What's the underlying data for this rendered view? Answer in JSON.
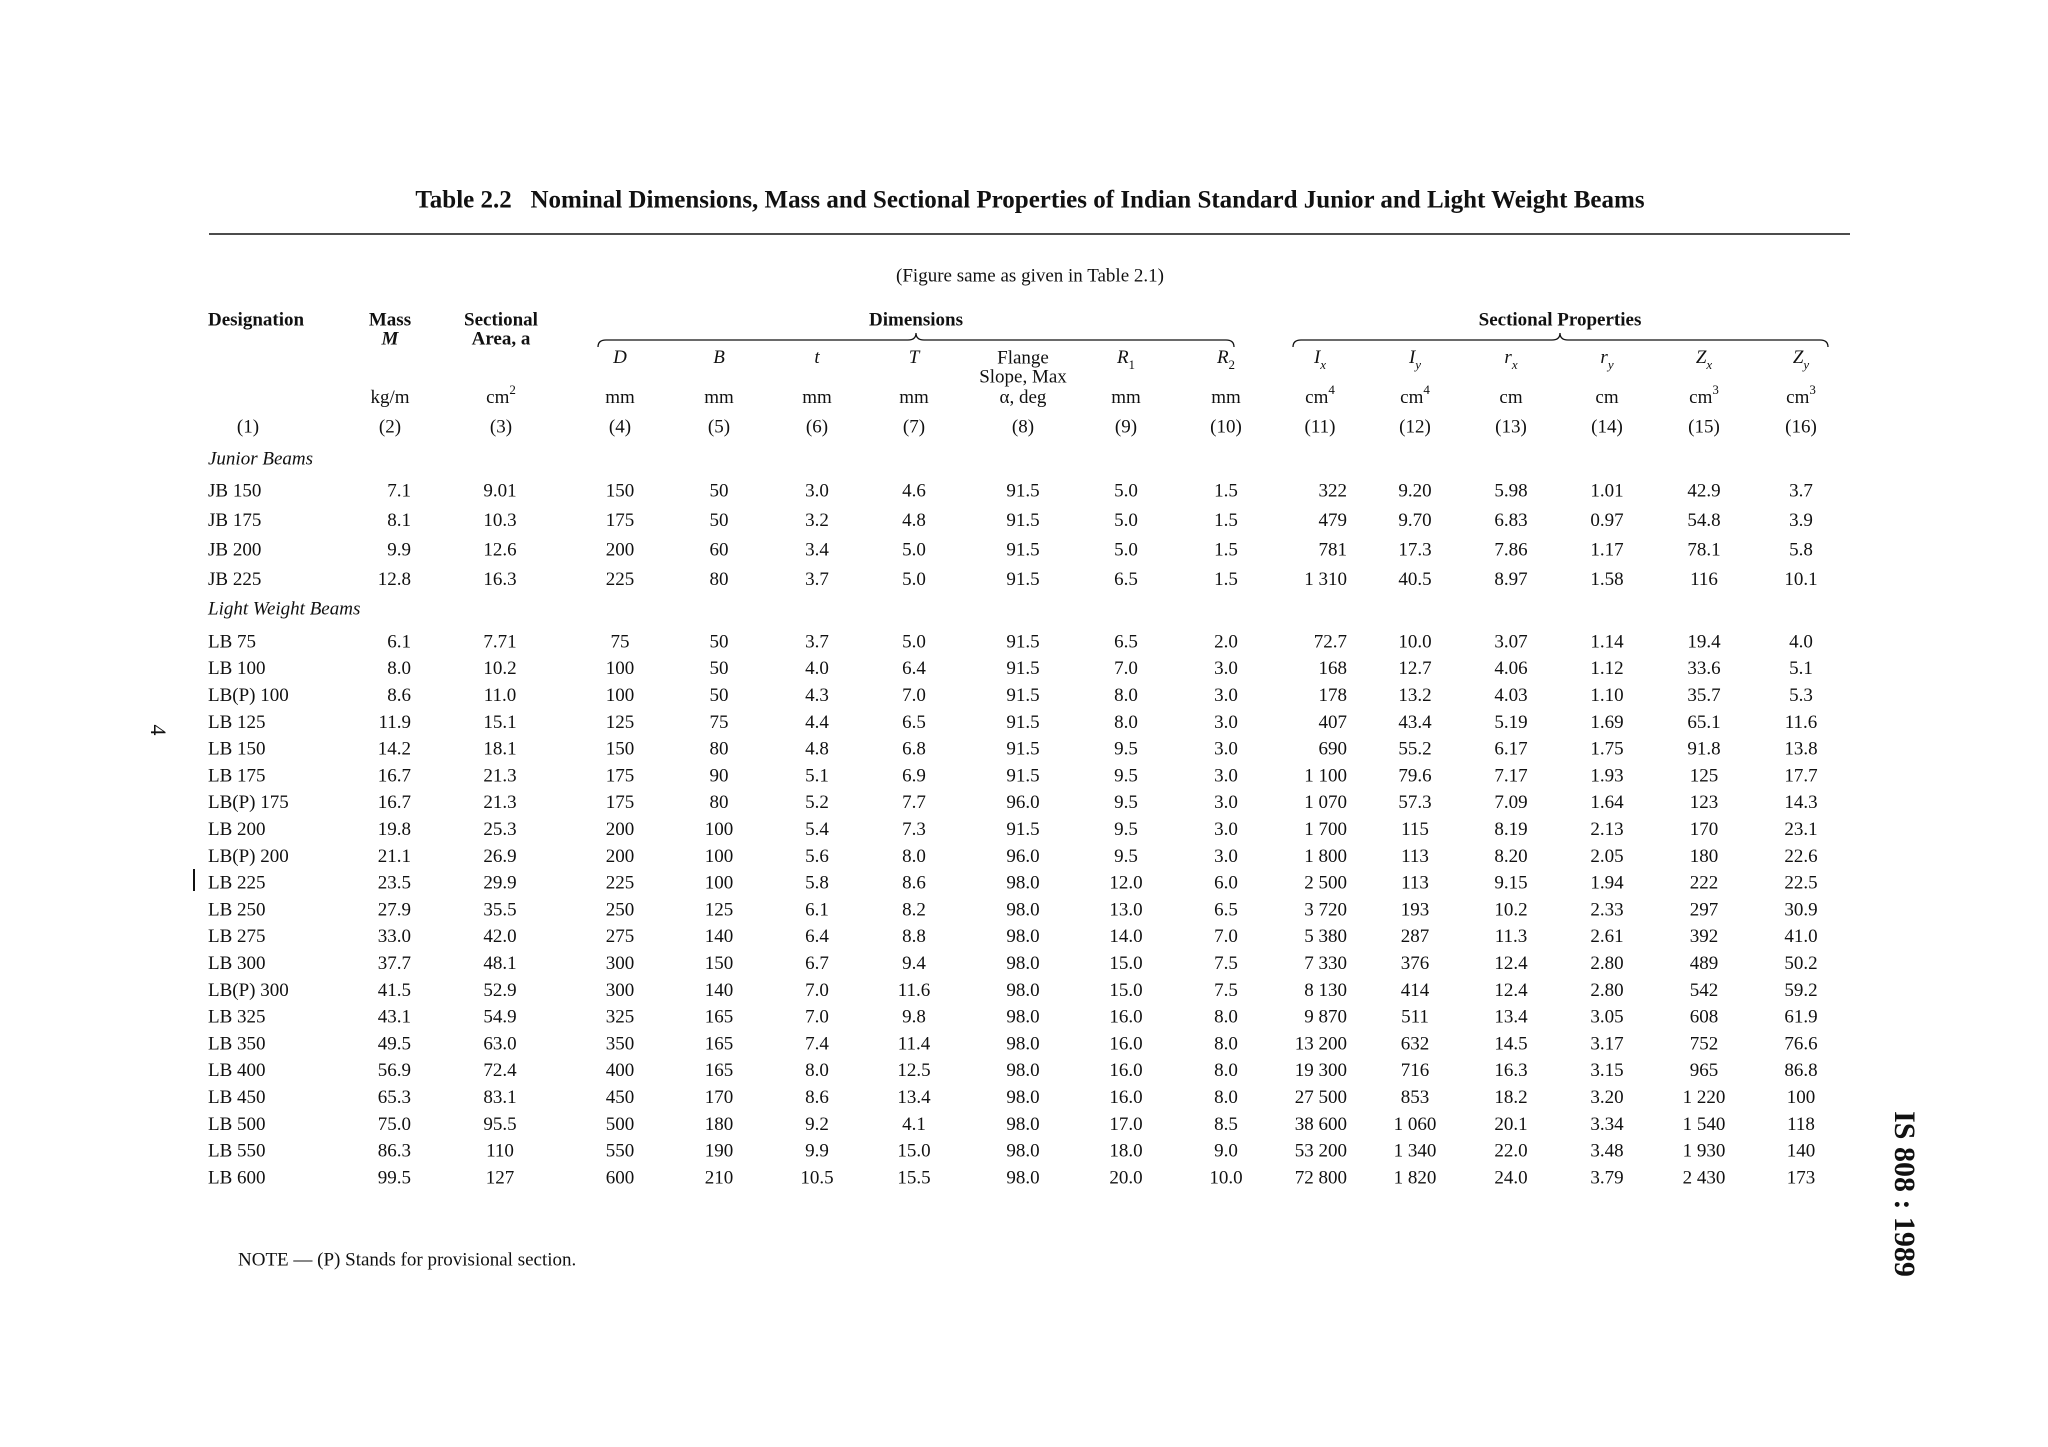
{
  "title": "Table 2.2   Nominal Dimensions, Mass and Sectional Properties of Indian Standard Junior and Light Weight Beams",
  "subtitle": "(Figure same as given in Table 2.1)",
  "header": {
    "top": [
      {
        "lines": [
          "Designation"
        ]
      },
      {
        "lines": [
          "Mass",
          "M"
        ]
      },
      {
        "lines": [
          "Sectional",
          "Area, a"
        ]
      }
    ],
    "groups": [
      "Dimensions",
      "Sectional Properties"
    ],
    "symbols": [
      {
        "s": "D"
      },
      {
        "s": "B"
      },
      {
        "s": "t"
      },
      {
        "s": "T"
      },
      {
        "lines": [
          "Flange",
          "Slope, Max"
        ]
      },
      {
        "s": "R",
        "sub": "1"
      },
      {
        "s": "R",
        "sub": "2"
      },
      {
        "s": "I",
        "sub": "x"
      },
      {
        "s": "I",
        "sub": "y"
      },
      {
        "s": "r",
        "sub": "x"
      },
      {
        "s": "r",
        "sub": "y"
      },
      {
        "s": "Z",
        "sub": "x"
      },
      {
        "s": "Z",
        "sub": "y"
      }
    ],
    "units": [
      {
        "t": "kg/m"
      },
      {
        "t": "cm",
        "sup": "2"
      },
      {
        "t": "mm"
      },
      {
        "t": "mm"
      },
      {
        "t": "mm"
      },
      {
        "t": "mm"
      },
      {
        "t": "α, deg"
      },
      {
        "t": "mm"
      },
      {
        "t": "mm"
      },
      {
        "t": "cm",
        "sup": "4"
      },
      {
        "t": "cm",
        "sup": "4"
      },
      {
        "t": "cm"
      },
      {
        "t": "cm"
      },
      {
        "t": "cm",
        "sup": "3"
      },
      {
        "t": "cm",
        "sup": "3"
      }
    ],
    "numbers": [
      "(1)",
      "(2)",
      "(3)",
      "(4)",
      "(5)",
      "(6)",
      "(7)",
      "(8)",
      "(9)",
      "(10)",
      "(11)",
      "(12)",
      "(13)",
      "(14)",
      "(15)",
      "(16)"
    ]
  },
  "sections": [
    {
      "label": "Junior Beams",
      "rows": [
        [
          "JB 150",
          "7.1",
          "9.01",
          "150",
          "50",
          "3.0",
          "4.6",
          "91.5",
          "5.0",
          "1.5",
          "322",
          "9.20",
          "5.98",
          "1.01",
          "42.9",
          "3.7"
        ],
        [
          "JB 175",
          "8.1",
          "10.3",
          "175",
          "50",
          "3.2",
          "4.8",
          "91.5",
          "5.0",
          "1.5",
          "479",
          "9.70",
          "6.83",
          "0.97",
          "54.8",
          "3.9"
        ],
        [
          "JB 200",
          "9.9",
          "12.6",
          "200",
          "60",
          "3.4",
          "5.0",
          "91.5",
          "5.0",
          "1.5",
          "781",
          "17.3",
          "7.86",
          "1.17",
          "78.1",
          "5.8"
        ],
        [
          "JB 225",
          "12.8",
          "16.3",
          "225",
          "80",
          "3.7",
          "5.0",
          "91.5",
          "6.5",
          "1.5",
          "1 310",
          "40.5",
          "8.97",
          "1.58",
          "116",
          "10.1"
        ]
      ]
    },
    {
      "label": "Light Weight Beams",
      "rows": [
        [
          "LB 75",
          "6.1",
          "7.71",
          "75",
          "50",
          "3.7",
          "5.0",
          "91.5",
          "6.5",
          "2.0",
          "72.7",
          "10.0",
          "3.07",
          "1.14",
          "19.4",
          "4.0"
        ],
        [
          "LB 100",
          "8.0",
          "10.2",
          "100",
          "50",
          "4.0",
          "6.4",
          "91.5",
          "7.0",
          "3.0",
          "168",
          "12.7",
          "4.06",
          "1.12",
          "33.6",
          "5.1"
        ],
        [
          "LB(P) 100",
          "8.6",
          "11.0",
          "100",
          "50",
          "4.3",
          "7.0",
          "91.5",
          "8.0",
          "3.0",
          "178",
          "13.2",
          "4.03",
          "1.10",
          "35.7",
          "5.3"
        ],
        [
          "LB 125",
          "11.9",
          "15.1",
          "125",
          "75",
          "4.4",
          "6.5",
          "91.5",
          "8.0",
          "3.0",
          "407",
          "43.4",
          "5.19",
          "1.69",
          "65.1",
          "11.6"
        ],
        [
          "LB 150",
          "14.2",
          "18.1",
          "150",
          "80",
          "4.8",
          "6.8",
          "91.5",
          "9.5",
          "3.0",
          "690",
          "55.2",
          "6.17",
          "1.75",
          "91.8",
          "13.8"
        ],
        [
          "LB 175",
          "16.7",
          "21.3",
          "175",
          "90",
          "5.1",
          "6.9",
          "91.5",
          "9.5",
          "3.0",
          "1 100",
          "79.6",
          "7.17",
          "1.93",
          "125",
          "17.7"
        ],
        [
          "LB(P) 175",
          "16.7",
          "21.3",
          "175",
          "80",
          "5.2",
          "7.7",
          "96.0",
          "9.5",
          "3.0",
          "1 070",
          "57.3",
          "7.09",
          "1.64",
          "123",
          "14.3"
        ],
        [
          "LB 200",
          "19.8",
          "25.3",
          "200",
          "100",
          "5.4",
          "7.3",
          "91.5",
          "9.5",
          "3.0",
          "1 700",
          "115",
          "8.19",
          "2.13",
          "170",
          "23.1"
        ],
        [
          "LB(P) 200",
          "21.1",
          "26.9",
          "200",
          "100",
          "5.6",
          "8.0",
          "96.0",
          "9.5",
          "3.0",
          "1 800",
          "113",
          "8.20",
          "2.05",
          "180",
          "22.6"
        ],
        [
          "LB 225",
          "23.5",
          "29.9",
          "225",
          "100",
          "5.8",
          "8.6",
          "98.0",
          "12.0",
          "6.0",
          "2 500",
          "113",
          "9.15",
          "1.94",
          "222",
          "22.5"
        ],
        [
          "LB 250",
          "27.9",
          "35.5",
          "250",
          "125",
          "6.1",
          "8.2",
          "98.0",
          "13.0",
          "6.5",
          "3 720",
          "193",
          "10.2",
          "2.33",
          "297",
          "30.9"
        ],
        [
          "LB 275",
          "33.0",
          "42.0",
          "275",
          "140",
          "6.4",
          "8.8",
          "98.0",
          "14.0",
          "7.0",
          "5 380",
          "287",
          "11.3",
          "2.61",
          "392",
          "41.0"
        ],
        [
          "LB 300",
          "37.7",
          "48.1",
          "300",
          "150",
          "6.7",
          "9.4",
          "98.0",
          "15.0",
          "7.5",
          "7 330",
          "376",
          "12.4",
          "2.80",
          "489",
          "50.2"
        ],
        [
          "LB(P) 300",
          "41.5",
          "52.9",
          "300",
          "140",
          "7.0",
          "11.6",
          "98.0",
          "15.0",
          "7.5",
          "8 130",
          "414",
          "12.4",
          "2.80",
          "542",
          "59.2"
        ],
        [
          "LB 325",
          "43.1",
          "54.9",
          "325",
          "165",
          "7.0",
          "9.8",
          "98.0",
          "16.0",
          "8.0",
          "9 870",
          "511",
          "13.4",
          "3.05",
          "608",
          "61.9"
        ],
        [
          "LB 350",
          "49.5",
          "63.0",
          "350",
          "165",
          "7.4",
          "11.4",
          "98.0",
          "16.0",
          "8.0",
          "13 200",
          "632",
          "14.5",
          "3.17",
          "752",
          "76.6"
        ],
        [
          "LB 400",
          "56.9",
          "72.4",
          "400",
          "165",
          "8.0",
          "12.5",
          "98.0",
          "16.0",
          "8.0",
          "19 300",
          "716",
          "16.3",
          "3.15",
          "965",
          "86.8"
        ],
        [
          "LB 450",
          "65.3",
          "83.1",
          "450",
          "170",
          "8.6",
          "13.4",
          "98.0",
          "16.0",
          "8.0",
          "27 500",
          "853",
          "18.2",
          "3.20",
          "1 220",
          "100"
        ],
        [
          "LB 500",
          "75.0",
          "95.5",
          "500",
          "180",
          "9.2",
          "4.1",
          "98.0",
          "17.0",
          "8.5",
          "38 600",
          "1 060",
          "20.1",
          "3.34",
          "1 540",
          "118"
        ],
        [
          "LB 550",
          "86.3",
          "110",
          "550",
          "190",
          "9.9",
          "15.0",
          "98.0",
          "18.0",
          "9.0",
          "53 200",
          "1 340",
          "22.0",
          "3.48",
          "1 930",
          "140"
        ],
        [
          "LB 600",
          "99.5",
          "127",
          "600",
          "210",
          "10.5",
          "15.5",
          "98.0",
          "20.0",
          "10.0",
          "72 800",
          "1 820",
          "24.0",
          "3.79",
          "2 430",
          "173"
        ]
      ]
    }
  ],
  "note": "NOTE — (P) Stands for provisional section.",
  "page_number": "4",
  "document_id": "IS 808 : 1989"
}
